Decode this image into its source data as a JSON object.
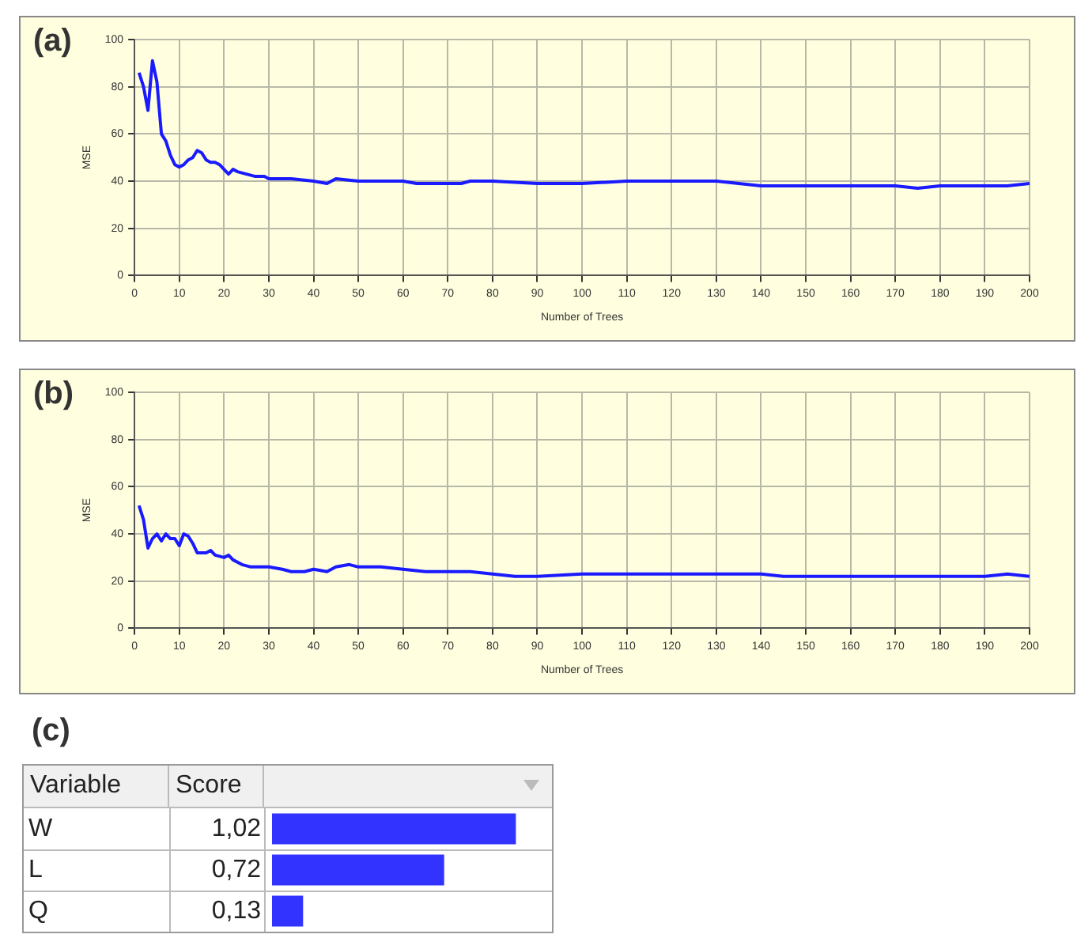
{
  "chart_data": [
    {
      "type": "line",
      "title": "(a)",
      "xlabel": "Number of Trees",
      "ylabel": "MSE",
      "xlim": [
        0,
        200
      ],
      "xticks": [
        0,
        10,
        20,
        30,
        40,
        50,
        60,
        70,
        80,
        90,
        100,
        110,
        120,
        130,
        140,
        150,
        160,
        170,
        180,
        190,
        200
      ],
      "ylim": [
        0,
        100
      ],
      "yticks": [
        0,
        20,
        40,
        60,
        80,
        100
      ],
      "grid": true,
      "marker": "none",
      "series": [
        {
          "color": "#1a1aff",
          "x": [
            1,
            2,
            3,
            4,
            5,
            6,
            7,
            8,
            9,
            10,
            11,
            12,
            13,
            14,
            15,
            16,
            17,
            18,
            19,
            20,
            21,
            22,
            23,
            25,
            27,
            29,
            30,
            35,
            40,
            43,
            45,
            50,
            55,
            60,
            63,
            65,
            70,
            73,
            75,
            80,
            90,
            100,
            110,
            120,
            125,
            130,
            135,
            140,
            145,
            150,
            155,
            160,
            165,
            170,
            175,
            180,
            190,
            195,
            200
          ],
          "values": [
            86,
            80,
            70,
            91,
            82,
            60,
            57,
            51,
            47,
            46,
            47,
            49,
            50,
            53,
            52,
            49,
            48,
            48,
            47,
            45,
            43,
            45,
            44,
            43,
            42,
            42,
            41,
            41,
            40,
            39,
            41,
            40,
            40,
            40,
            39,
            39,
            39,
            39,
            40,
            40,
            39,
            39,
            40,
            40,
            40,
            40,
            39,
            38,
            38,
            38,
            38,
            38,
            38,
            38,
            37,
            38,
            38,
            38,
            39
          ]
        }
      ]
    },
    {
      "type": "line",
      "title": "(b)",
      "xlabel": "Number of Trees",
      "ylabel": "MSE",
      "xlim": [
        0,
        200
      ],
      "xticks": [
        0,
        10,
        20,
        30,
        40,
        50,
        60,
        70,
        80,
        90,
        100,
        110,
        120,
        130,
        140,
        150,
        160,
        170,
        180,
        190,
        200
      ],
      "ylim": [
        0,
        100
      ],
      "yticks": [
        0,
        20,
        40,
        60,
        80,
        100
      ],
      "grid": true,
      "marker": "none",
      "series": [
        {
          "color": "#1a1aff",
          "x": [
            1,
            2,
            3,
            4,
            5,
            6,
            7,
            8,
            9,
            10,
            11,
            12,
            13,
            14,
            16,
            17,
            18,
            20,
            21,
            22,
            24,
            26,
            30,
            33,
            35,
            38,
            40,
            43,
            45,
            48,
            50,
            55,
            60,
            65,
            70,
            75,
            80,
            85,
            90,
            100,
            110,
            120,
            125,
            130,
            140,
            145,
            150,
            160,
            170,
            180,
            190,
            195,
            200
          ],
          "values": [
            52,
            46,
            34,
            38,
            40,
            37,
            40,
            38,
            38,
            35,
            40,
            39,
            36,
            32,
            32,
            33,
            31,
            30,
            31,
            29,
            27,
            26,
            26,
            25,
            24,
            24,
            25,
            24,
            26,
            27,
            26,
            26,
            25,
            24,
            24,
            24,
            23,
            22,
            22,
            23,
            23,
            23,
            23,
            23,
            23,
            22,
            22,
            22,
            22,
            22,
            22,
            23,
            22
          ]
        }
      ]
    },
    {
      "type": "bar",
      "orientation": "horizontal",
      "title": "(c)",
      "ylabel": "Variable",
      "xlabel": "Score",
      "categories": [
        "W",
        "L",
        "Q"
      ],
      "values": [
        1.02,
        0.72,
        0.13
      ],
      "value_labels": [
        "1,02",
        "0,72",
        "0,13"
      ],
      "color": "#3333ff"
    }
  ]
}
